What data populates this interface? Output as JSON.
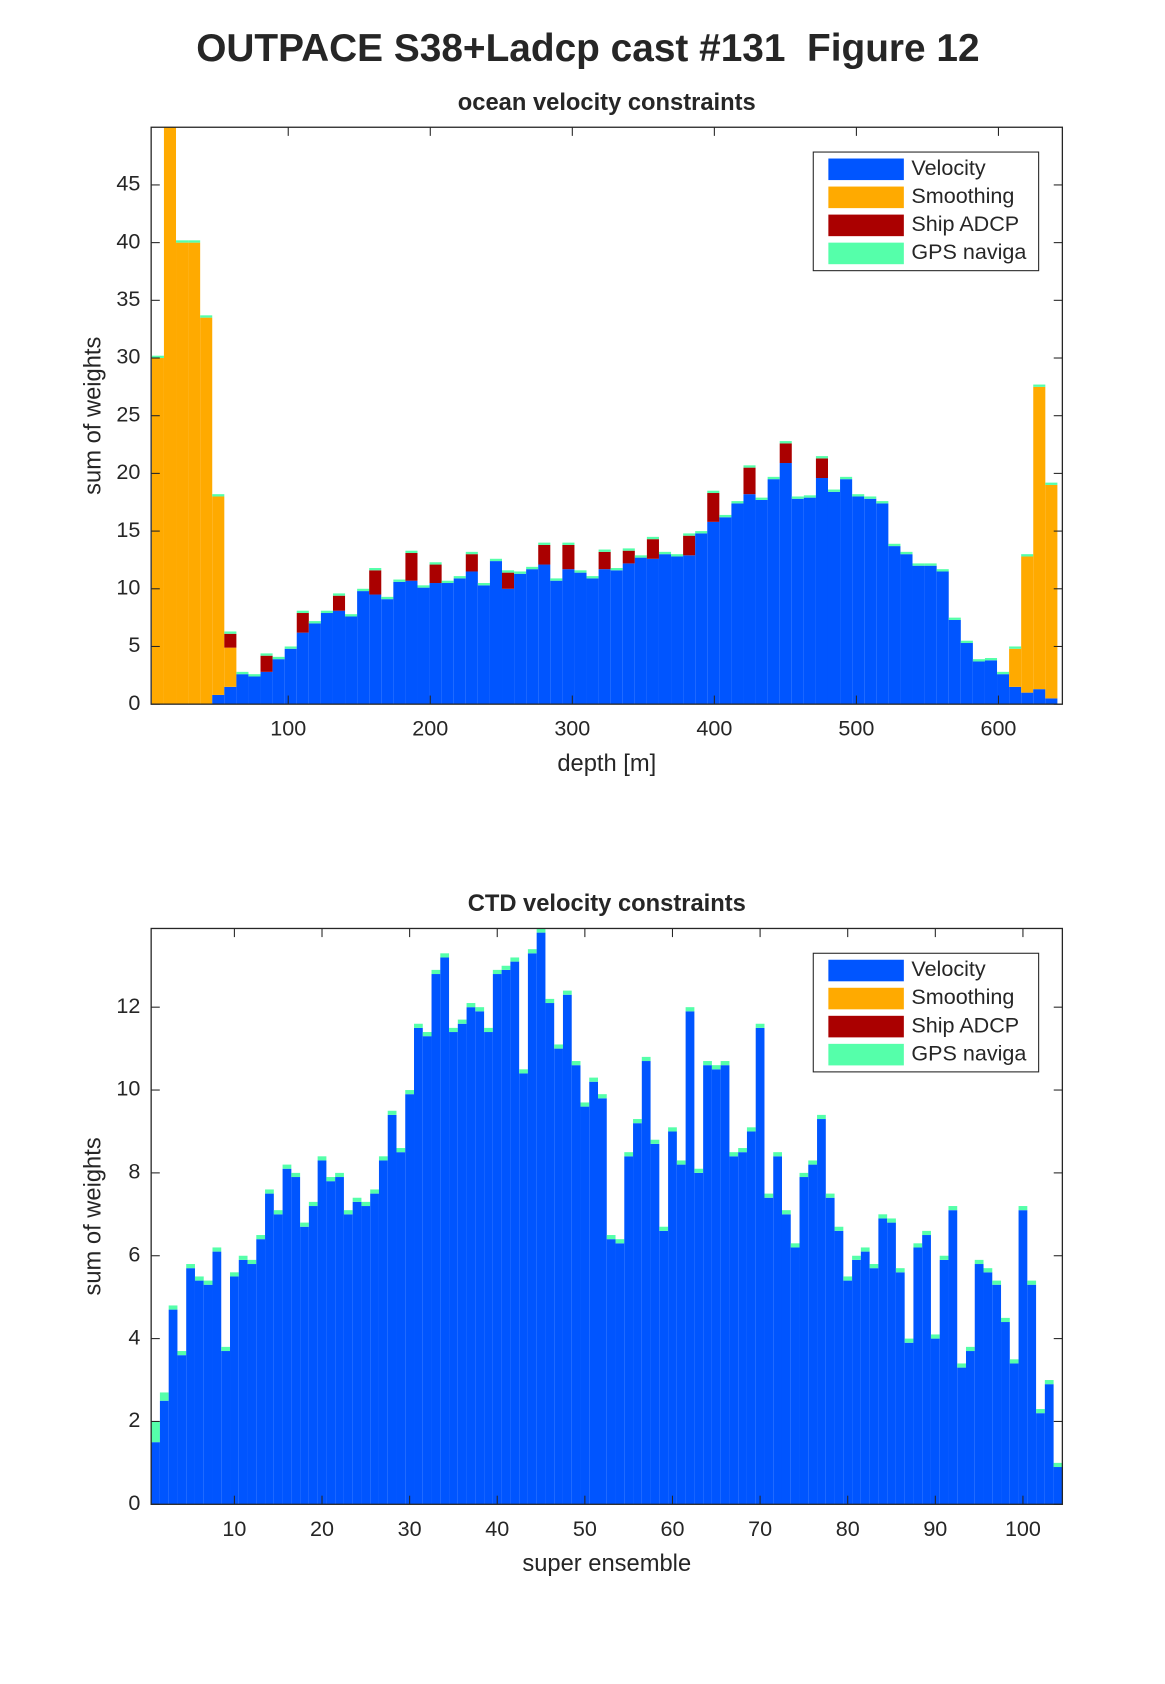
{
  "title": "OUTPACE S38+Ladcp cast #131  Figure 12",
  "chart_data": [
    {
      "type": "histogram",
      "title": "ocean velocity constraints",
      "xlabel": "depth [m]",
      "ylabel": "sum of weights",
      "bins": [
        4,
        12.5,
        21,
        29.5,
        38,
        46.5,
        55,
        63.5,
        72,
        80.5,
        89,
        97.5,
        106,
        114.5,
        123,
        131.5,
        140,
        148.5,
        157,
        165.5,
        174,
        182.5,
        191,
        199.5,
        208,
        216.5,
        225,
        233.5,
        242,
        250.5,
        259,
        267.5,
        276,
        284.5,
        293,
        301.5,
        310,
        318.5,
        327,
        335.5,
        344,
        352.5,
        361,
        369.5,
        378,
        386.5,
        395,
        403.5,
        412,
        420.5,
        429,
        437.5,
        446,
        454.5,
        463,
        471.5,
        480,
        488.5,
        497,
        505.5,
        514,
        522.5,
        531,
        539.5,
        548,
        556.5,
        565,
        573.5,
        582,
        590.5,
        599,
        607.5,
        616,
        624.5,
        633,
        641.5
      ],
      "series": [
        {
          "name": "Velocity",
          "color": "#0055ff",
          "values": [
            0,
            0,
            0,
            0,
            0,
            0.8,
            1.5,
            2.6,
            2.4,
            2.8,
            3.9,
            4.8,
            6.2,
            7.0,
            7.9,
            8.1,
            7.6,
            9.8,
            9.5,
            9.1,
            10.6,
            10.7,
            10.1,
            10.5,
            10.5,
            10.9,
            11.5,
            10.3,
            12.4,
            10.0,
            11.3,
            11.7,
            12.1,
            10.7,
            11.7,
            11.4,
            10.9,
            11.7,
            11.6,
            12.2,
            12.7,
            12.6,
            13.0,
            12.8,
            12.9,
            14.8,
            15.8,
            16.2,
            17.4,
            18.2,
            17.7,
            19.5,
            20.9,
            17.8,
            17.9,
            19.6,
            18.4,
            19.5,
            18.0,
            17.8,
            17.4,
            13.7,
            13.0,
            12.0,
            12.0,
            11.5,
            7.3,
            5.3,
            3.7,
            3.8,
            2.6,
            1.5,
            1.0,
            1.3,
            0.5
          ]
        },
        {
          "name": "Smoothing",
          "color": "#ffaa00",
          "values": [
            30,
            50,
            40,
            40,
            33.5,
            17.2,
            3.4,
            0,
            0,
            0,
            0,
            0,
            0,
            0,
            0,
            0,
            0,
            0,
            0,
            0,
            0,
            0,
            0,
            0,
            0,
            0,
            0,
            0,
            0,
            0,
            0,
            0,
            0,
            0,
            0,
            0,
            0,
            0,
            0,
            0,
            0,
            0,
            0,
            0,
            0,
            0,
            0,
            0,
            0,
            0,
            0,
            0,
            0,
            0,
            0,
            0,
            0,
            0,
            0,
            0,
            0,
            0,
            0,
            0,
            0,
            0,
            0,
            0,
            0,
            0,
            0,
            3.3,
            11.8,
            26.2,
            18.5
          ]
        },
        {
          "name": "Ship ADCP",
          "color": "#aa0000",
          "values": [
            0,
            0,
            0,
            0,
            0,
            0,
            1.2,
            0,
            0,
            1.4,
            0,
            0,
            1.7,
            0,
            0,
            1.3,
            0,
            0,
            2.1,
            0,
            0,
            2.4,
            0,
            1.6,
            0,
            0,
            1.5,
            0,
            0,
            1.4,
            0,
            0,
            1.7,
            0,
            2.1,
            0,
            0,
            1.5,
            0,
            1.1,
            0,
            1.7,
            0,
            0,
            1.7,
            0,
            2.5,
            0,
            0,
            2.3,
            0,
            0,
            1.7,
            0,
            0,
            1.7,
            0,
            0,
            0,
            0,
            0,
            0,
            0,
            0,
            0,
            0,
            0,
            0,
            0,
            0,
            0,
            0,
            0,
            0,
            0
          ]
        },
        {
          "name": "GPS naviga",
          "color": "#55ffaa",
          "values": [
            0.2,
            0.2,
            0.2,
            0.2,
            0.2,
            0.2,
            0.2,
            0.2,
            0.2,
            0.2,
            0.2,
            0.2,
            0.2,
            0.2,
            0.2,
            0.2,
            0.2,
            0.2,
            0.2,
            0.2,
            0.2,
            0.2,
            0.2,
            0.2,
            0.2,
            0.2,
            0.2,
            0.2,
            0.2,
            0.2,
            0.2,
            0.2,
            0.2,
            0.2,
            0.2,
            0.2,
            0.2,
            0.2,
            0.2,
            0.2,
            0.2,
            0.2,
            0.2,
            0.2,
            0.2,
            0.2,
            0.2,
            0.2,
            0.2,
            0.2,
            0.2,
            0.2,
            0.2,
            0.2,
            0.2,
            0.2,
            0.2,
            0.2,
            0.2,
            0.2,
            0.2,
            0.2,
            0.2,
            0.2,
            0.2,
            0.2,
            0.2,
            0.2,
            0.2,
            0.2,
            0.2,
            0.2,
            0.2,
            0.2,
            0.2
          ]
        }
      ],
      "xlim": [
        3.5,
        645
      ],
      "xticks": [
        100,
        200,
        300,
        400,
        500,
        600
      ],
      "ylim": [
        0,
        50
      ],
      "yticks": [
        0,
        5,
        10,
        15,
        20,
        25,
        30,
        35,
        40,
        45
      ],
      "stacked": true,
      "legend": "northeast"
    },
    {
      "type": "bar",
      "title": "CTD velocity constraints",
      "xlabel": "super ensemble",
      "ylabel": "sum of weights",
      "x": [
        1,
        2,
        3,
        4,
        5,
        6,
        7,
        8,
        9,
        10,
        11,
        12,
        13,
        14,
        15,
        16,
        17,
        18,
        19,
        20,
        21,
        22,
        23,
        24,
        25,
        26,
        27,
        28,
        29,
        30,
        31,
        32,
        33,
        34,
        35,
        36,
        37,
        38,
        39,
        40,
        41,
        42,
        43,
        44,
        45,
        46,
        47,
        48,
        49,
        50,
        51,
        52,
        53,
        54,
        55,
        56,
        57,
        58,
        59,
        60,
        61,
        62,
        63,
        64,
        65,
        66,
        67,
        68,
        69,
        70,
        71,
        72,
        73,
        74,
        75,
        76,
        77,
        78,
        79,
        80,
        81,
        82,
        83,
        84,
        85,
        86,
        87,
        88,
        89,
        90,
        91,
        92,
        93,
        94,
        95,
        96,
        97,
        98,
        99,
        100,
        101,
        102,
        103,
        104
      ],
      "series": [
        {
          "name": "Velocity",
          "color": "#0055ff",
          "values": [
            1.5,
            2.5,
            4.7,
            3.6,
            5.7,
            5.4,
            5.3,
            6.1,
            3.7,
            5.5,
            5.9,
            5.8,
            6.4,
            7.5,
            7.0,
            8.1,
            7.9,
            6.7,
            7.2,
            8.3,
            7.8,
            7.9,
            7.0,
            7.3,
            7.2,
            7.5,
            8.3,
            9.4,
            8.5,
            9.9,
            11.5,
            11.3,
            12.8,
            13.2,
            11.4,
            11.6,
            12.0,
            11.9,
            11.4,
            12.8,
            12.9,
            13.1,
            10.4,
            13.3,
            13.8,
            12.1,
            11.0,
            12.3,
            10.6,
            9.6,
            10.2,
            9.8,
            6.4,
            6.3,
            8.4,
            9.2,
            10.7,
            8.7,
            6.6,
            9.0,
            8.2,
            11.9,
            8.0,
            10.6,
            10.5,
            10.6,
            8.4,
            8.5,
            9.0,
            11.5,
            7.4,
            8.4,
            7.0,
            6.2,
            7.9,
            8.2,
            9.3,
            7.4,
            6.6,
            5.4,
            5.9,
            6.1,
            5.7,
            6.9,
            6.8,
            5.6,
            3.9,
            6.2,
            6.5,
            4.0,
            5.9,
            7.1,
            3.3,
            3.7,
            5.8,
            5.6,
            5.3,
            4.4,
            3.4,
            7.1,
            5.3,
            2.2,
            2.9,
            0.9
          ]
        },
        {
          "name": "Smoothing",
          "color": "#ffaa00",
          "values": [
            0,
            0,
            0,
            0,
            0,
            0,
            0,
            0,
            0,
            0,
            0,
            0,
            0,
            0,
            0,
            0,
            0,
            0,
            0,
            0,
            0,
            0,
            0,
            0,
            0,
            0,
            0,
            0,
            0,
            0,
            0,
            0,
            0,
            0,
            0,
            0,
            0,
            0,
            0,
            0,
            0,
            0,
            0,
            0,
            0,
            0,
            0,
            0,
            0,
            0,
            0,
            0,
            0,
            0,
            0,
            0,
            0,
            0,
            0,
            0,
            0,
            0,
            0,
            0,
            0,
            0,
            0,
            0,
            0,
            0,
            0,
            0,
            0,
            0,
            0,
            0,
            0,
            0,
            0,
            0,
            0,
            0,
            0,
            0,
            0,
            0,
            0,
            0,
            0,
            0,
            0,
            0,
            0,
            0,
            0,
            0,
            0,
            0,
            0,
            0,
            0,
            0,
            0,
            0
          ]
        },
        {
          "name": "Ship ADCP",
          "color": "#aa0000",
          "values": [
            0,
            0,
            0,
            0,
            0,
            0,
            0,
            0,
            0,
            0,
            0,
            0,
            0,
            0,
            0,
            0,
            0,
            0,
            0,
            0,
            0,
            0,
            0,
            0,
            0,
            0,
            0,
            0,
            0,
            0,
            0,
            0,
            0,
            0,
            0,
            0,
            0,
            0,
            0,
            0,
            0,
            0,
            0,
            0,
            0,
            0,
            0,
            0,
            0,
            0,
            0,
            0,
            0,
            0,
            0,
            0,
            0,
            0,
            0,
            0,
            0,
            0,
            0,
            0,
            0,
            0,
            0,
            0,
            0,
            0,
            0,
            0,
            0,
            0,
            0,
            0,
            0,
            0,
            0,
            0,
            0,
            0,
            0,
            0,
            0,
            0,
            0,
            0,
            0,
            0,
            0,
            0,
            0,
            0,
            0,
            0,
            0,
            0,
            0,
            0,
            0,
            0,
            0,
            0
          ]
        },
        {
          "name": "GPS naviga",
          "color": "#55ffaa",
          "values": [
            0.5,
            0.2,
            0.1,
            0.1,
            0.1,
            0.1,
            0.1,
            0.1,
            0.1,
            0.1,
            0.1,
            0.1,
            0.1,
            0.1,
            0.1,
            0.1,
            0.1,
            0.1,
            0.1,
            0.1,
            0.1,
            0.1,
            0.1,
            0.1,
            0.1,
            0.1,
            0.1,
            0.1,
            0.1,
            0.1,
            0.1,
            0.1,
            0.1,
            0.1,
            0.1,
            0.1,
            0.1,
            0.1,
            0.1,
            0.1,
            0.1,
            0.1,
            0.1,
            0.1,
            0.1,
            0.1,
            0.1,
            0.1,
            0.1,
            0.1,
            0.1,
            0.1,
            0.1,
            0.1,
            0.1,
            0.1,
            0.1,
            0.1,
            0.1,
            0.1,
            0.1,
            0.1,
            0.1,
            0.1,
            0.1,
            0.1,
            0.1,
            0.1,
            0.1,
            0.1,
            0.1,
            0.1,
            0.1,
            0.1,
            0.1,
            0.1,
            0.1,
            0.1,
            0.1,
            0.1,
            0.1,
            0.1,
            0.1,
            0.1,
            0.1,
            0.1,
            0.1,
            0.1,
            0.1,
            0.1,
            0.1,
            0.1,
            0.1,
            0.1,
            0.1,
            0.1,
            0.1,
            0.1,
            0.1,
            0.1,
            0.1,
            0.1,
            0.1,
            0.1
          ]
        }
      ],
      "xlim": [
        0.5,
        104.5
      ],
      "xticks": [
        10,
        20,
        30,
        40,
        50,
        60,
        70,
        80,
        90,
        100
      ],
      "ylim": [
        0,
        13.9
      ],
      "yticks": [
        0,
        2,
        4,
        6,
        8,
        10,
        12
      ],
      "stacked": true,
      "legend": "northeast"
    }
  ]
}
